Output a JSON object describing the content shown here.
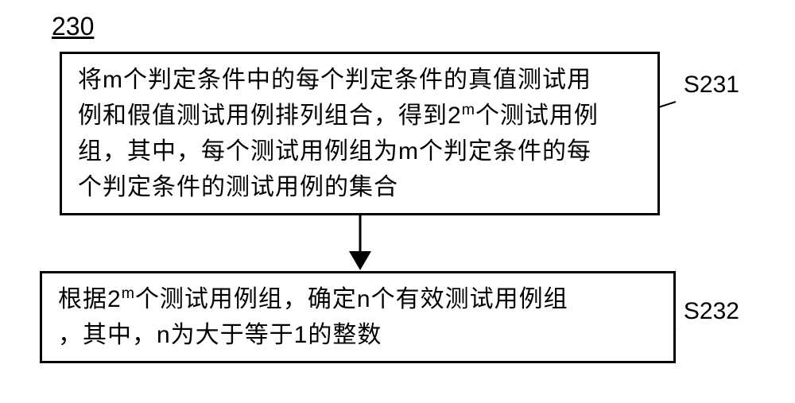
{
  "figure_number": "230",
  "steps": [
    {
      "label": "S231",
      "text_lines": [
        "将m个判定条件中的每个判定条件的真值测试用",
        "例和假值测试用例排列组合，得到2",
        "个测试用例",
        "组，其中，每个测试用例组为m个判定条件的每",
        "个判定条件的测试用例的集合"
      ],
      "superscript": "m"
    },
    {
      "label": "S232",
      "text_lines": [
        "根据2",
        "个测试用例组，确定n个有效测试用例组",
        "，其中，n为大于等于1的整数"
      ],
      "superscript": "m"
    }
  ],
  "style": {
    "border_color": "#000000",
    "border_width": 3,
    "background_color": "#ffffff",
    "font_size": 30,
    "figure_font_size": 32,
    "box1_width": 755,
    "box2_width": 800,
    "arrow_height": 70,
    "line_height": 1.5
  }
}
